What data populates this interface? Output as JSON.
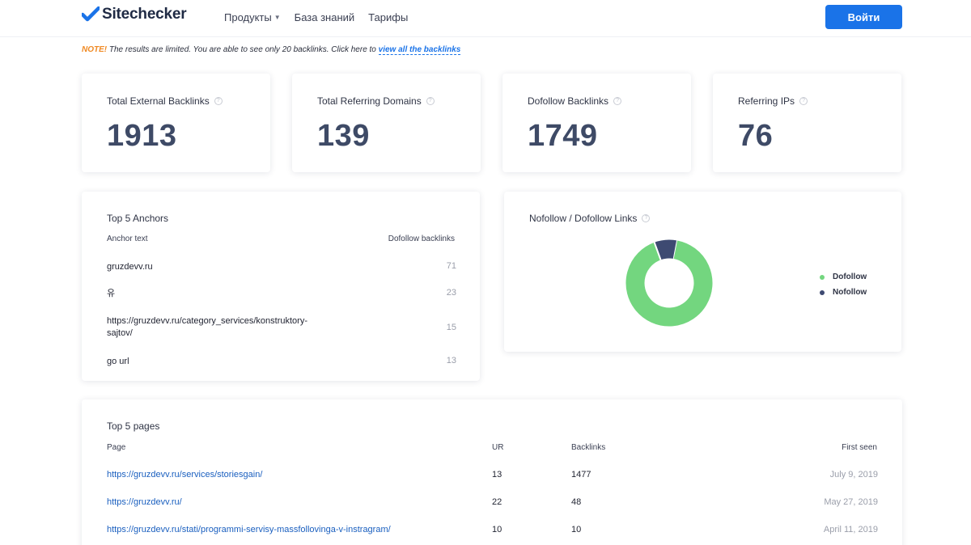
{
  "header": {
    "logo_text": "Sitechecker",
    "nav": [
      {
        "label": "Продукты",
        "has_dropdown": true
      },
      {
        "label": "База знаний",
        "has_dropdown": false
      },
      {
        "label": "Тарифы",
        "has_dropdown": false
      }
    ],
    "login_label": "Войти",
    "accent_color": "#1a73e8"
  },
  "note": {
    "tag": "NOTE!",
    "text": " The results are limited. You are able to see only 20 backlinks. Click here to ",
    "link": "view all the backlinks"
  },
  "stats": [
    {
      "title": "Total External Backlinks",
      "value": "1913"
    },
    {
      "title": "Total Referring Domains",
      "value": "139"
    },
    {
      "title": "Dofollow Backlinks",
      "value": "1749"
    },
    {
      "title": "Referring IPs",
      "value": "76"
    }
  ],
  "anchors": {
    "title": "Top 5 Anchors",
    "col_anchor": "Anchor text",
    "col_dofollow": "Dofollow backlinks",
    "rows": [
      {
        "text": "gruzdevv.ru",
        "count": "71"
      },
      {
        "text": "유",
        "count": "23"
      },
      {
        "text": "https://gruzdevv.ru/category_services/konstruktory-sajtov/",
        "count": "15"
      },
      {
        "text": "go url",
        "count": "13"
      }
    ]
  },
  "links_chart": {
    "title": "Nofollow / Dofollow Links",
    "legend": [
      {
        "label": "Dofollow",
        "color": "#73d67f"
      },
      {
        "label": "Nofollow",
        "color": "#3e4a72"
      }
    ]
  },
  "chart_data": {
    "type": "pie",
    "categories": [
      "Dofollow",
      "Nofollow"
    ],
    "values": [
      1749,
      164
    ],
    "colors": [
      "#73d67f",
      "#3e4a72"
    ],
    "title": "Nofollow / Dofollow Links",
    "legend_position": "right"
  },
  "pages": {
    "title": "Top 5 pages",
    "col_page": "Page",
    "col_ur": "UR",
    "col_backlinks": "Backlinks",
    "col_first_seen": "First seen",
    "rows": [
      {
        "url": "https://gruzdevv.ru/services/storiesgain/",
        "ur": "13",
        "backlinks": "1477",
        "first_seen": "July 9, 2019"
      },
      {
        "url": "https://gruzdevv.ru/",
        "ur": "22",
        "backlinks": "48",
        "first_seen": "May 27, 2019"
      },
      {
        "url": "https://gruzdevv.ru/stati/programmi-servisy-massfollovinga-v-instragram/",
        "ur": "10",
        "backlinks": "10",
        "first_seen": "April 11, 2019"
      }
    ]
  }
}
